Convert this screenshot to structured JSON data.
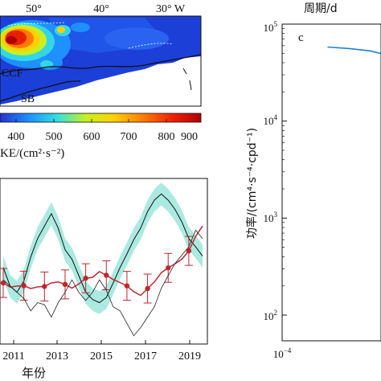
{
  "figure": {
    "map_panel": {
      "lon_labels": [
        "50°",
        "40°",
        "30° W"
      ],
      "annotations": [
        "CCF",
        "SB"
      ],
      "colorbar": {
        "ticks": [
          "400",
          "500",
          "600",
          "700",
          "800",
          "900"
        ],
        "label": "KE/(cm²·s⁻²)",
        "colors": [
          "#2233cc",
          "#1e90ff",
          "#33e0e0",
          "#c8f020",
          "#ffd000",
          "#ff7a00",
          "#ee2200",
          "#b00000"
        ]
      }
    },
    "timeseries_panel": {
      "xlabel": "年份",
      "x_ticks": [
        "2011",
        "2013",
        "2015",
        "2017",
        "2019"
      ]
    },
    "spectrum_panel": {
      "panel_label": "c",
      "top_label": "周期/d",
      "ylabel": "功率/(cm⁴·s⁻⁴·cpd⁻¹)",
      "y_ticks": [
        {
          "base": "10",
          "exp": "5"
        },
        {
          "base": "10",
          "exp": "4"
        },
        {
          "base": "10",
          "exp": "3"
        },
        {
          "base": "10",
          "exp": "2"
        }
      ],
      "x_ticks": [
        {
          "base": "10",
          "exp": "−4"
        }
      ]
    }
  },
  "chart_data": [
    {
      "type": "line",
      "series": [
        {
          "values": [
            420,
            330,
            300,
            355,
            470,
            560,
            620,
            680,
            610,
            505,
            460,
            380,
            300,
            265,
            250,
            275,
            345,
            420,
            485,
            555,
            610,
            690,
            745,
            775,
            745,
            700,
            640,
            560,
            520,
            475
          ]
        },
        {
          "values": [
            345,
            325,
            330,
            332,
            318,
            326,
            328,
            345,
            350,
            338,
            320,
            340,
            368,
            372,
            400,
            382,
            362,
            347,
            331,
            303,
            285,
            318,
            350,
            395,
            418,
            438,
            460,
            500,
            570,
            620
          ]
        },
        {
          "values": [
            360,
            330,
            300,
            270,
            210,
            250,
            240,
            180,
            250,
            300,
            360,
            300,
            260,
            300,
            360,
            310,
            230,
            210,
            150,
            90,
            130,
            180,
            230,
            320,
            380,
            440,
            480,
            520,
            600,
            560
          ]
        }
      ]
    },
    {
      "type": "line",
      "x_scale": "log",
      "y_scale": "log",
      "x_ticks": [
        0.0001
      ],
      "y_ticks": [
        100,
        1000,
        10000,
        100000
      ],
      "series": [
        {
          "x": [
            0.00017,
            0.00022,
            0.00028,
            0.00034,
            0.0004,
            0.00046,
            0.0005
          ],
          "y": [
            58000,
            56000,
            53000,
            48000,
            43000,
            38000,
            35000
          ]
        }
      ]
    }
  ]
}
